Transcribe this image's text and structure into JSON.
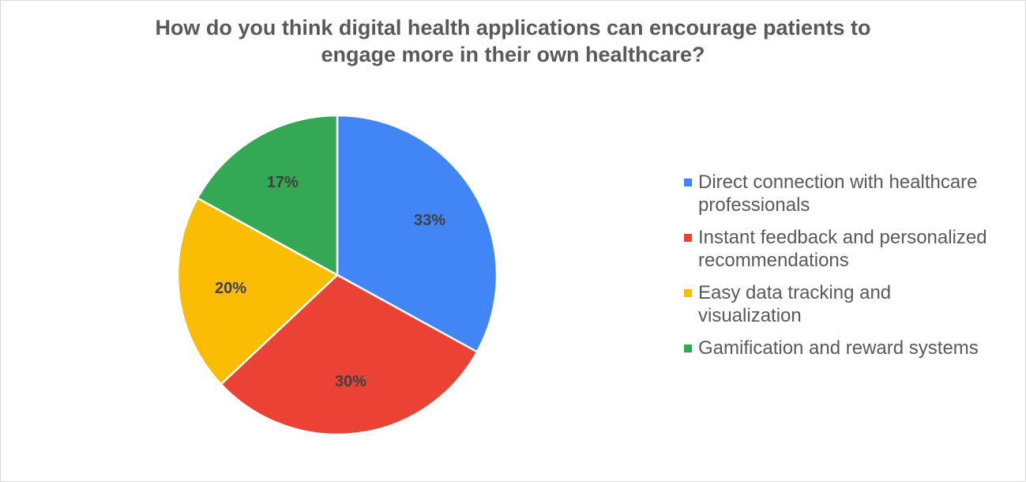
{
  "chart_data": {
    "type": "pie",
    "title_lines": [
      "How do you think digital health applications can encourage patients to",
      "engage more in their own healthcare?"
    ],
    "slices": [
      {
        "label": "Direct connection with healthcare professionals",
        "legend_lines": [
          "Direct connection with healthcare",
          "professionals"
        ],
        "value": 33,
        "value_label": "33%",
        "color": "#4285F4"
      },
      {
        "label": "Instant feedback and personalized recommendations",
        "legend_lines": [
          "Instant feedback and personalized",
          "recommendations"
        ],
        "value": 30,
        "value_label": "30%",
        "color": "#EA4335"
      },
      {
        "label": "Easy data tracking and visualization",
        "legend_lines": [
          "Easy data tracking and",
          "visualization"
        ],
        "value": 20,
        "value_label": "20%",
        "color": "#FBBC04"
      },
      {
        "label": "Gamification and reward systems",
        "legend_lines": [
          "Gamification and reward systems"
        ],
        "value": 17,
        "value_label": "17%",
        "color": "#34A853"
      }
    ],
    "legend_position": "right",
    "start_angle": "12 o'clock",
    "direction": "clockwise"
  }
}
